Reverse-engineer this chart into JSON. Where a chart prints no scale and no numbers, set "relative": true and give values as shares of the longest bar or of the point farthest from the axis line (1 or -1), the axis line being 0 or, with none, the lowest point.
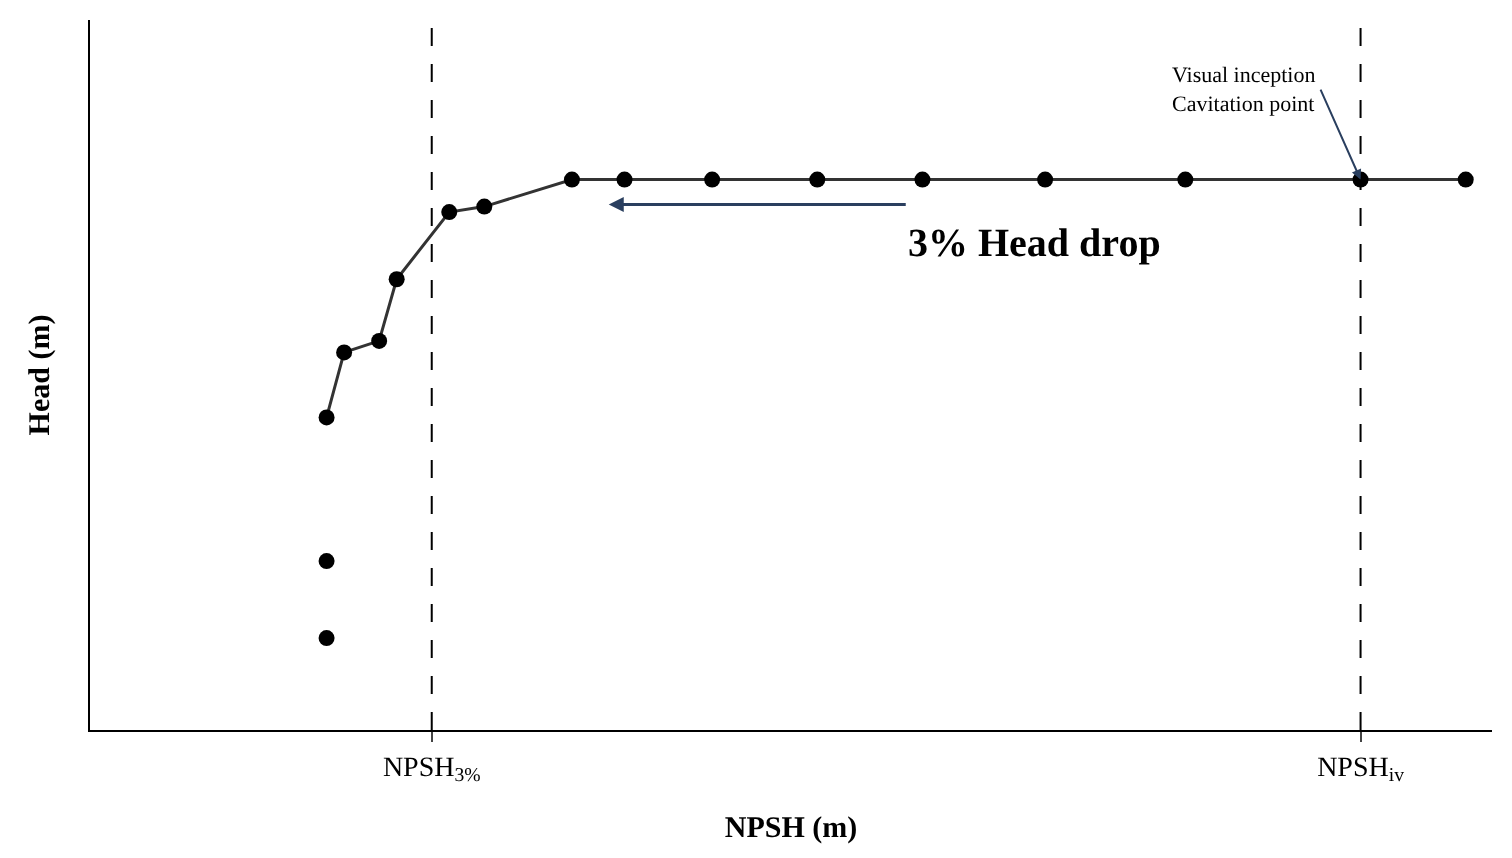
{
  "chart_data": {
    "type": "line",
    "xlabel": "NPSH (m)",
    "ylabel": "Head (m)",
    "relative": true,
    "categories": [
      null,
      null,
      null,
      null,
      null,
      null,
      null,
      null,
      null,
      null,
      null,
      null,
      null,
      null,
      null,
      null,
      null,
      null,
      null,
      "NPSH$_{3%}$",
      null,
      null,
      null,
      null,
      null,
      null,
      null,
      null,
      null,
      null,
      null,
      null,
      null,
      null,
      null,
      null,
      null,
      null,
      null,
      null,
      null,
      null,
      null,
      null,
      null,
      null,
      null,
      null,
      null,
      null,
      null,
      null,
      null,
      null,
      null,
      null,
      null,
      null,
      null,
      null,
      null,
      null,
      null,
      null,
      null,
      null,
      null,
      null,
      null,
      null,
      null,
      null,
      "NPSH$_{iv}$",
      null,
      null,
      null,
      null,
      null,
      null,
      null
    ],
    "series": [
      {
        "color": "#333333",
        "values": [
          null,
          null,
          null,
          null,
          null,
          null,
          null,
          null,
          null,
          null,
          null,
          null,
          null,
          0.568,
          0.686,
          null,
          0.707,
          0.819,
          null,
          null,
          0.941,
          null,
          0.951,
          null,
          null,
          null,
          null,
          1,
          null,
          null,
          1,
          null,
          null,
          null,
          null,
          1,
          null,
          null,
          null,
          null,
          null,
          1,
          null,
          null,
          null,
          null,
          null,
          1,
          null,
          null,
          null,
          null,
          null,
          null,
          1,
          null,
          null,
          null,
          null,
          null,
          null,
          null,
          1,
          null,
          null,
          null,
          null,
          null,
          null,
          null,
          null,
          null,
          1,
          null,
          null,
          null,
          null,
          null,
          1,
          null
        ]
      },
      {
        "type": "scatter",
        "color": "#000000",
        "values": [
          null,
          null,
          null,
          null,
          null,
          null,
          null,
          null,
          null,
          null,
          null,
          null,
          null,
          0.307,
          null,
          null,
          null,
          null,
          null,
          null,
          null,
          null,
          null,
          null,
          null,
          null,
          null,
          null,
          null,
          null,
          null,
          null,
          null,
          null,
          null,
          null,
          null,
          null,
          null,
          null,
          null,
          null,
          null,
          null,
          null,
          null,
          null,
          null,
          null,
          null,
          null,
          null,
          null,
          null,
          null,
          null,
          null,
          null,
          null,
          null,
          null,
          null,
          null,
          null,
          null,
          null,
          null,
          null,
          null,
          null,
          null,
          null,
          null,
          null,
          null,
          null,
          null,
          null,
          null,
          null
        ]
      },
      {
        "type": "scatter",
        "color": "#000000",
        "values": [
          null,
          null,
          null,
          null,
          null,
          null,
          null,
          null,
          null,
          null,
          null,
          null,
          null,
          0.167,
          null,
          null,
          null,
          null,
          null,
          null,
          null,
          null,
          null,
          null,
          null,
          null,
          null,
          null,
          null,
          null,
          null,
          null,
          null,
          null,
          null,
          null,
          null,
          null,
          null,
          null,
          null,
          null,
          null,
          null,
          null,
          null,
          null,
          null,
          null,
          null,
          null,
          null,
          null,
          null,
          null,
          null,
          null,
          null,
          null,
          null,
          null,
          null,
          null,
          null,
          null,
          null,
          null,
          null,
          null,
          null,
          null,
          null,
          null,
          null,
          null,
          null,
          null,
          null,
          null,
          null
        ]
      }
    ],
    "marker": "circle",
    "line_style": "solid",
    "ref_lines": [
      {
        "axis": "x",
        "value": "NPSH$_{3%}$",
        "label": null,
        "line_style": "dashed",
        "color": "#000000"
      },
      {
        "axis": "x",
        "value": "NPSH$_{iv}$",
        "label": null,
        "line_style": "dashed",
        "color": "#000000"
      }
    ],
    "annotations": [
      {
        "text": "Visual inception\nCavitation point",
        "x": "NPSH$_{iv}$",
        "y": 1
      },
      "3% Head drop"
    ]
  }
}
